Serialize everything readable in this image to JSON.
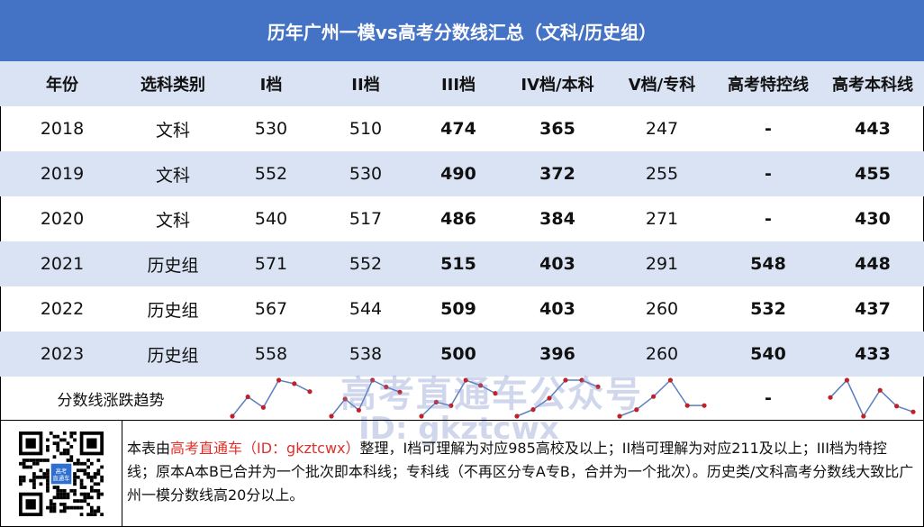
{
  "title": "历年广州一模vs高考分数线汇总（文科/历史组）",
  "headers": [
    "年份",
    "选科类别",
    "I档",
    "II档",
    "III档",
    "IV档/本科",
    "V档/专科",
    "高考特控线",
    "高考本科线"
  ],
  "rows": [
    [
      "2018",
      "文科",
      "530",
      "510",
      "474",
      "365",
      "247",
      "-",
      "443"
    ],
    [
      "2019",
      "文科",
      "552",
      "530",
      "490",
      "372",
      "255",
      "-",
      "455"
    ],
    [
      "2020",
      "文科",
      "540",
      "517",
      "486",
      "384",
      "271",
      "-",
      "430"
    ],
    [
      "2021",
      "历史组",
      "571",
      "552",
      "515",
      "403",
      "291",
      "548",
      "448"
    ],
    [
      "2022",
      "历史组",
      "567",
      "544",
      "509",
      "403",
      "260",
      "532",
      "437"
    ],
    [
      "2023",
      "历史组",
      "558",
      "538",
      "500",
      "396",
      "260",
      "540",
      "433"
    ]
  ],
  "trend_label": "分数线涨跌趋势",
  "trend_dash": "-",
  "colors": {
    "title_bg": "#4472c4",
    "band": "#dae3f3",
    "spark_line": "#5b7fbf",
    "spark_dot": "#c0202a",
    "highlight": "#e0302a"
  },
  "watermark": {
    "line1": "高考直通车公众号",
    "line2": "ID: gkztcwx"
  },
  "qr": {
    "badge": "高考\n直通车"
  },
  "footnote": {
    "pre": "本表由",
    "highlight": "高考直通车（ID：gkztcwx）",
    "post": "整理，I档可理解为对应985高校及以上；II档可理解为对应211及以上；III档为特控线；原本A本B已合并为一个批次即本科线；专科线（不再区分专A专B，合并为一个批次）。历史类/文科高考分数线大致比广州一模分数线高20分以上。"
  }
}
